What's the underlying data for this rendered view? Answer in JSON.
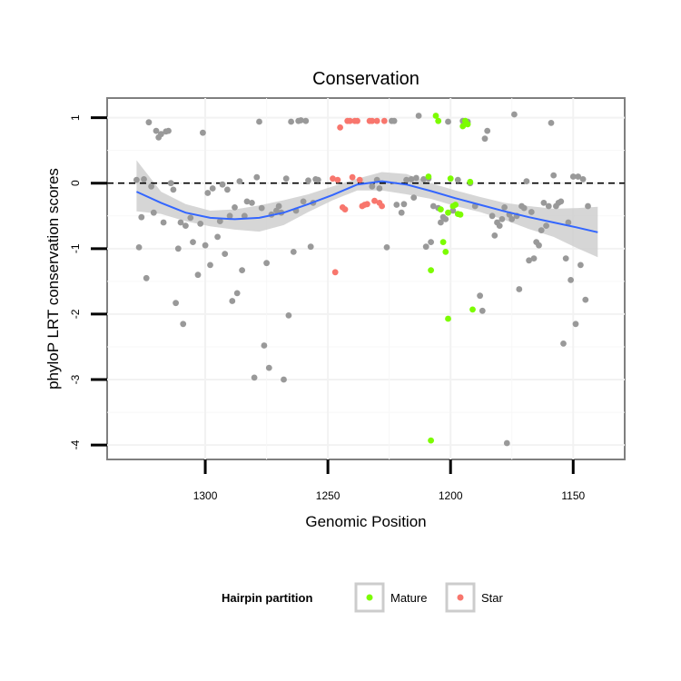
{
  "chart_data": {
    "type": "scatter",
    "title": "Conservation",
    "xlabel": "Genomic Position",
    "ylabel": "phyloP LRT conservation scores",
    "x_reversed": true,
    "xlim": [
      1129,
      1340
    ],
    "ylim": [
      -4.22,
      1.3
    ],
    "x_ticks": [
      1300,
      1250,
      1200,
      1150
    ],
    "y_ticks": [
      1,
      0,
      -1,
      -2,
      -3,
      -4
    ],
    "grid": true,
    "reference_line": {
      "y": 0,
      "style": "dashed"
    },
    "legend": {
      "title": "Hairpin partition",
      "position": "bottom",
      "entries": [
        {
          "label": "Mature",
          "color": "#7CFC00"
        },
        {
          "label": "Star",
          "color": "#F8766D"
        }
      ]
    },
    "colors": {
      "other": "#999999",
      "Mature": "#7CFC00",
      "Star": "#F8766D",
      "smooth": "#3366FF",
      "band": "#cccccc"
    },
    "series": [
      {
        "group": "other",
        "points": [
          [
            1328,
            0.05
          ],
          [
            1327,
            -0.98
          ],
          [
            1326,
            -0.52
          ],
          [
            1325,
            0.06
          ],
          [
            1324,
            -1.45
          ],
          [
            1323,
            0.93
          ],
          [
            1322,
            -0.05
          ],
          [
            1321,
            -0.45
          ],
          [
            1320,
            0.8
          ],
          [
            1319,
            0.7
          ],
          [
            1318,
            0.75
          ],
          [
            1317,
            -0.6
          ],
          [
            1316,
            0.79
          ],
          [
            1315,
            0.8
          ],
          [
            1314,
            0.0
          ],
          [
            1313,
            -0.1
          ],
          [
            1312,
            -1.83
          ],
          [
            1311,
            -1.0
          ],
          [
            1310,
            -0.6
          ],
          [
            1309,
            -2.15
          ],
          [
            1308,
            -0.65
          ],
          [
            1306,
            -0.53
          ],
          [
            1305,
            -0.9
          ],
          [
            1303,
            -1.4
          ],
          [
            1302,
            -0.62
          ],
          [
            1301,
            0.77
          ],
          [
            1300,
            -0.95
          ],
          [
            1299,
            -0.15
          ],
          [
            1298,
            -1.25
          ],
          [
            1297,
            -0.08
          ],
          [
            1295,
            -0.82
          ],
          [
            1294,
            -0.58
          ],
          [
            1293,
            -0.02
          ],
          [
            1292,
            -1.08
          ],
          [
            1291,
            -0.1
          ],
          [
            1290,
            -0.5
          ],
          [
            1289,
            -1.8
          ],
          [
            1288,
            -0.37
          ],
          [
            1287,
            -1.68
          ],
          [
            1286,
            0.03
          ],
          [
            1285,
            -1.33
          ],
          [
            1284,
            -0.5
          ],
          [
            1283,
            -0.28
          ],
          [
            1281,
            -0.3
          ],
          [
            1280,
            -2.97
          ],
          [
            1279,
            0.09
          ],
          [
            1278,
            0.94
          ],
          [
            1277,
            -0.38
          ],
          [
            1276,
            -2.48
          ],
          [
            1275,
            -1.22
          ],
          [
            1274,
            -2.82
          ],
          [
            1273,
            -0.48
          ],
          [
            1271,
            -0.42
          ],
          [
            1270,
            -0.35
          ],
          [
            1269,
            -0.45
          ],
          [
            1268,
            -3.0
          ],
          [
            1267,
            0.07
          ],
          [
            1266,
            -2.02
          ],
          [
            1265,
            0.94
          ],
          [
            1264,
            -1.05
          ],
          [
            1263,
            -0.42
          ],
          [
            1262,
            0.95
          ],
          [
            1261,
            0.96
          ],
          [
            1260,
            -0.28
          ],
          [
            1259,
            0.95
          ],
          [
            1258,
            0.04
          ],
          [
            1257,
            -0.97
          ],
          [
            1256,
            -0.3
          ],
          [
            1255,
            0.06
          ],
          [
            1254,
            0.05
          ],
          [
            1232,
            -0.05
          ],
          [
            1230,
            0.05
          ],
          [
            1229,
            -0.08
          ],
          [
            1226,
            -0.98
          ],
          [
            1224,
            0.95
          ],
          [
            1223,
            0.95
          ],
          [
            1222,
            -0.33
          ],
          [
            1220,
            -0.45
          ],
          [
            1219,
            -0.32
          ],
          [
            1218,
            0.05
          ],
          [
            1216,
            0.06
          ],
          [
            1215,
            -0.22
          ],
          [
            1214,
            0.08
          ],
          [
            1213,
            1.03
          ],
          [
            1210,
            -0.97
          ],
          [
            1211,
            0.06
          ],
          [
            1209,
            0.07
          ],
          [
            1208,
            -0.9
          ],
          [
            1207,
            -0.35
          ],
          [
            1205,
            -0.38
          ],
          [
            1204,
            -0.6
          ],
          [
            1203,
            -0.52
          ],
          [
            1202,
            -0.55
          ],
          [
            1201,
            0.94
          ],
          [
            1199,
            -0.42
          ],
          [
            1197,
            0.05
          ],
          [
            1195,
            0.95
          ],
          [
            1193,
            0.94
          ],
          [
            1192,
            0.0
          ],
          [
            1190,
            -0.35
          ],
          [
            1188,
            -1.72
          ],
          [
            1187,
            -1.95
          ],
          [
            1186,
            0.68
          ],
          [
            1185,
            0.8
          ],
          [
            1183,
            -0.5
          ],
          [
            1182,
            -0.8
          ],
          [
            1181,
            -0.6
          ],
          [
            1180,
            -0.65
          ],
          [
            1179,
            -0.55
          ],
          [
            1178,
            -0.37
          ],
          [
            1177,
            -3.97
          ],
          [
            1176,
            -0.48
          ],
          [
            1175,
            -0.55
          ],
          [
            1174,
            1.05
          ],
          [
            1173,
            -0.5
          ],
          [
            1172,
            -1.62
          ],
          [
            1171,
            -0.35
          ],
          [
            1170,
            -0.38
          ],
          [
            1169,
            0.03
          ],
          [
            1168,
            -1.18
          ],
          [
            1167,
            -0.44
          ],
          [
            1166,
            -1.15
          ],
          [
            1165,
            -0.9
          ],
          [
            1164,
            -0.95
          ],
          [
            1163,
            -0.72
          ],
          [
            1162,
            -0.3
          ],
          [
            1161,
            -0.65
          ],
          [
            1160,
            -0.35
          ],
          [
            1159,
            0.92
          ],
          [
            1158,
            0.12
          ],
          [
            1157,
            -0.35
          ],
          [
            1156,
            -0.3
          ],
          [
            1155,
            -0.28
          ],
          [
            1154,
            -2.45
          ],
          [
            1153,
            -1.15
          ],
          [
            1152,
            -0.6
          ],
          [
            1151,
            -1.48
          ],
          [
            1150,
            0.1
          ],
          [
            1149,
            -2.15
          ],
          [
            1148,
            0.1
          ],
          [
            1147,
            -1.25
          ],
          [
            1146,
            0.06
          ],
          [
            1145,
            -1.78
          ],
          [
            1144,
            -0.35
          ]
        ]
      },
      {
        "group": "Mature",
        "points": [
          [
            1209,
            0.1
          ],
          [
            1208,
            -1.33
          ],
          [
            1208,
            -3.93
          ],
          [
            1206,
            1.03
          ],
          [
            1205,
            0.95
          ],
          [
            1204,
            -0.4
          ],
          [
            1203,
            -0.9
          ],
          [
            1202,
            -1.05
          ],
          [
            1201,
            -2.07
          ],
          [
            1201,
            -0.45
          ],
          [
            1200,
            0.07
          ],
          [
            1199,
            -0.35
          ],
          [
            1198,
            -0.33
          ],
          [
            1197,
            -0.47
          ],
          [
            1196,
            -0.48
          ],
          [
            1195,
            0.87
          ],
          [
            1194,
            0.95
          ],
          [
            1193,
            0.9
          ],
          [
            1192,
            0.02
          ],
          [
            1191,
            -1.93
          ]
        ]
      },
      {
        "group": "Star",
        "points": [
          [
            1248,
            0.07
          ],
          [
            1247,
            -1.36
          ],
          [
            1246,
            0.05
          ],
          [
            1245,
            0.85
          ],
          [
            1244,
            -0.37
          ],
          [
            1243,
            -0.4
          ],
          [
            1242,
            0.95
          ],
          [
            1241,
            0.95
          ],
          [
            1240,
            0.09
          ],
          [
            1239,
            0.95
          ],
          [
            1238,
            0.95
          ],
          [
            1237,
            0.05
          ],
          [
            1236,
            -0.35
          ],
          [
            1235,
            -0.33
          ],
          [
            1234,
            -0.32
          ],
          [
            1233,
            0.95
          ],
          [
            1232,
            0.95
          ],
          [
            1231,
            -0.27
          ],
          [
            1230,
            0.95
          ],
          [
            1229,
            -0.3
          ],
          [
            1228,
            -0.35
          ],
          [
            1227,
            0.95
          ]
        ]
      }
    ],
    "smooth": {
      "x": [
        1328,
        1318,
        1308,
        1298,
        1288,
        1278,
        1268,
        1258,
        1248,
        1238,
        1228,
        1218,
        1208,
        1198,
        1188,
        1178,
        1168,
        1158,
        1148,
        1140
      ],
      "y": [
        -0.13,
        -0.3,
        -0.45,
        -0.53,
        -0.55,
        -0.53,
        -0.45,
        -0.32,
        -0.18,
        -0.02,
        0.03,
        -0.02,
        -0.12,
        -0.23,
        -0.33,
        -0.43,
        -0.52,
        -0.6,
        -0.68,
        -0.75
      ],
      "lower": [
        -0.43,
        -0.47,
        -0.58,
        -0.66,
        -0.71,
        -0.74,
        -0.64,
        -0.44,
        -0.26,
        -0.11,
        -0.11,
        -0.17,
        -0.24,
        -0.35,
        -0.44,
        -0.56,
        -0.7,
        -0.82,
        -1.0,
        -1.13
      ],
      "upper": [
        0.35,
        -0.13,
        -0.32,
        -0.42,
        -0.4,
        -0.34,
        -0.26,
        -0.17,
        -0.05,
        0.07,
        0.17,
        0.14,
        0.0,
        -0.11,
        -0.21,
        -0.3,
        -0.35,
        -0.39,
        -0.38,
        -0.36
      ]
    }
  }
}
